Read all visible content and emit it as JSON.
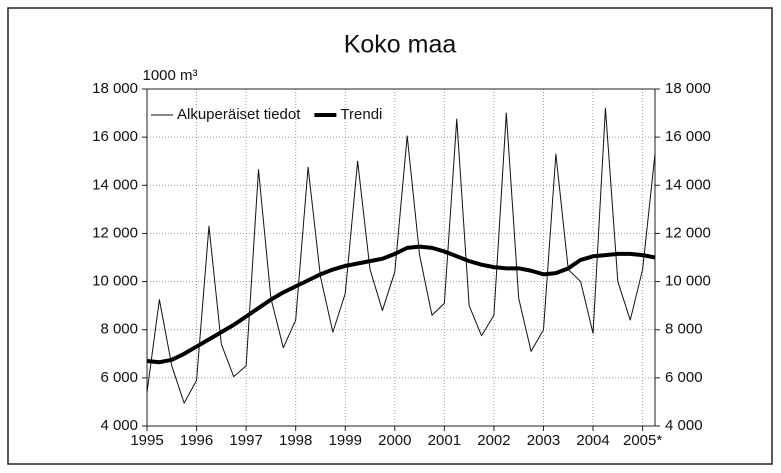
{
  "chart_data": {
    "type": "line",
    "title": "Koko maa",
    "y_unit": "1000 m³",
    "x": [
      1995,
      1995.25,
      1995.5,
      1995.75,
      1996,
      1996.25,
      1996.5,
      1996.75,
      1997,
      1997.25,
      1997.5,
      1997.75,
      1998,
      1998.25,
      1998.5,
      1998.75,
      1999,
      1999.25,
      1999.5,
      1999.75,
      2000,
      2000.25,
      2000.5,
      2000.75,
      2001,
      2001.25,
      2001.5,
      2001.75,
      2002,
      2002.25,
      2002.5,
      2002.75,
      2003,
      2003.25,
      2003.5,
      2003.75,
      2004,
      2004.25,
      2004.5,
      2004.75,
      2005,
      2005.25
    ],
    "series": [
      {
        "name": "Alkuperäiset tiedot",
        "color": "#111111",
        "line_width": 1,
        "values": [
          5400,
          9250,
          6500,
          4950,
          5900,
          12300,
          7400,
          6050,
          6500,
          14650,
          9300,
          7250,
          8400,
          14750,
          10200,
          7900,
          9500,
          15000,
          10500,
          8800,
          10400,
          16050,
          11100,
          8600,
          9100,
          16750,
          9000,
          7750,
          8600,
          17000,
          9300,
          7100,
          8000,
          15300,
          10500,
          10000,
          7850,
          17200,
          10000,
          8400,
          10500,
          15300
        ]
      },
      {
        "name": "Trendi",
        "color": "#000000",
        "line_width": 4,
        "values": [
          6700,
          6650,
          6750,
          7000,
          7300,
          7600,
          7900,
          8200,
          8550,
          8900,
          9250,
          9550,
          9800,
          10050,
          10300,
          10500,
          10650,
          10750,
          10850,
          10950,
          11150,
          11400,
          11450,
          11400,
          11250,
          11050,
          10850,
          10700,
          10600,
          10550,
          10550,
          10450,
          10300,
          10350,
          10550,
          10900,
          11050,
          11100,
          11150,
          11150,
          11100,
          11000
        ]
      }
    ],
    "xlim": [
      1995,
      2005.25
    ],
    "xticks": [
      1995,
      1996,
      1997,
      1998,
      1999,
      2000,
      2001,
      2002,
      2003,
      2004,
      {
        "value": 2005,
        "label": "2005*"
      }
    ],
    "ylim": [
      4000,
      18000
    ],
    "yticks": [
      {
        "value": 4000,
        "label": "4 000"
      },
      {
        "value": 6000,
        "label": "6 000"
      },
      {
        "value": 8000,
        "label": "8 000"
      },
      {
        "value": 10000,
        "label": "10 000"
      },
      {
        "value": 12000,
        "label": "12 000"
      },
      {
        "value": 14000,
        "label": "14 000"
      },
      {
        "value": 16000,
        "label": "16 000"
      },
      {
        "value": 18000,
        "label": "18 000"
      }
    ],
    "y2ticks_mirror": true,
    "grid": true,
    "legend": "top-left"
  }
}
